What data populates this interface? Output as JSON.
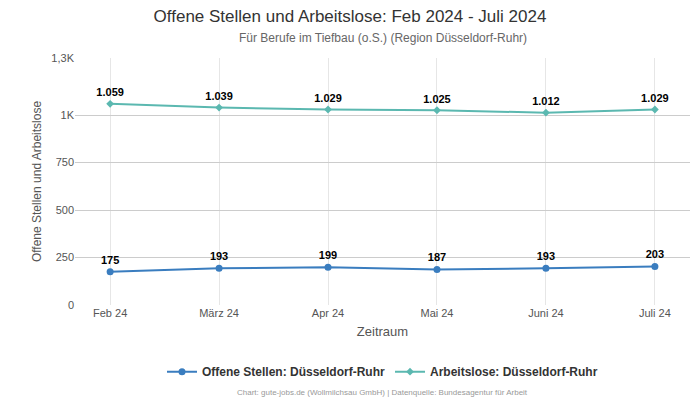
{
  "chart_data": {
    "type": "line",
    "title": "Offene Stellen und Arbeitslose: Feb 2024 - Juli 2024",
    "subtitle": "Für Berufe im Tiefbau (o.S.) (Region Düsseldorf-Ruhr)",
    "x_label": "Zeitraum",
    "y_label": "Offene Stellen und Arbeitslose",
    "annotations": [
      "Chart: gute-jobs.de (Wollmilchsau GmbH) | Datenquelle: Bundesagentur für Arbeit"
    ],
    "categories": [
      "Feb 24",
      "März 24",
      "Apr 24",
      "Mai 24",
      "Juni 24",
      "Juli 24"
    ],
    "series": [
      {
        "name": "Offene Stellen: Düsseldorf-Ruhr",
        "color": "#3a7dbf",
        "marker": "circle",
        "values": [
          175,
          193,
          199,
          187,
          193,
          203
        ]
      },
      {
        "name": "Arbeitslose: Düsseldorf-Ruhr",
        "color": "#5bb8b0",
        "marker": "diamond",
        "values": [
          1059,
          1039,
          1029,
          1025,
          1012,
          1029
        ],
        "value_labels": [
          "1.059",
          "1.039",
          "1.029",
          "1.025",
          "1.012",
          "1.029"
        ]
      }
    ],
    "ylim": [
      0,
      1300
    ],
    "yticks": [
      0,
      250,
      500,
      750,
      {
        "value": 1000,
        "label": "1K"
      },
      {
        "value": 1300,
        "label": "1,3K"
      }
    ],
    "grid": true,
    "legend": "bottom",
    "data_labels": true
  }
}
